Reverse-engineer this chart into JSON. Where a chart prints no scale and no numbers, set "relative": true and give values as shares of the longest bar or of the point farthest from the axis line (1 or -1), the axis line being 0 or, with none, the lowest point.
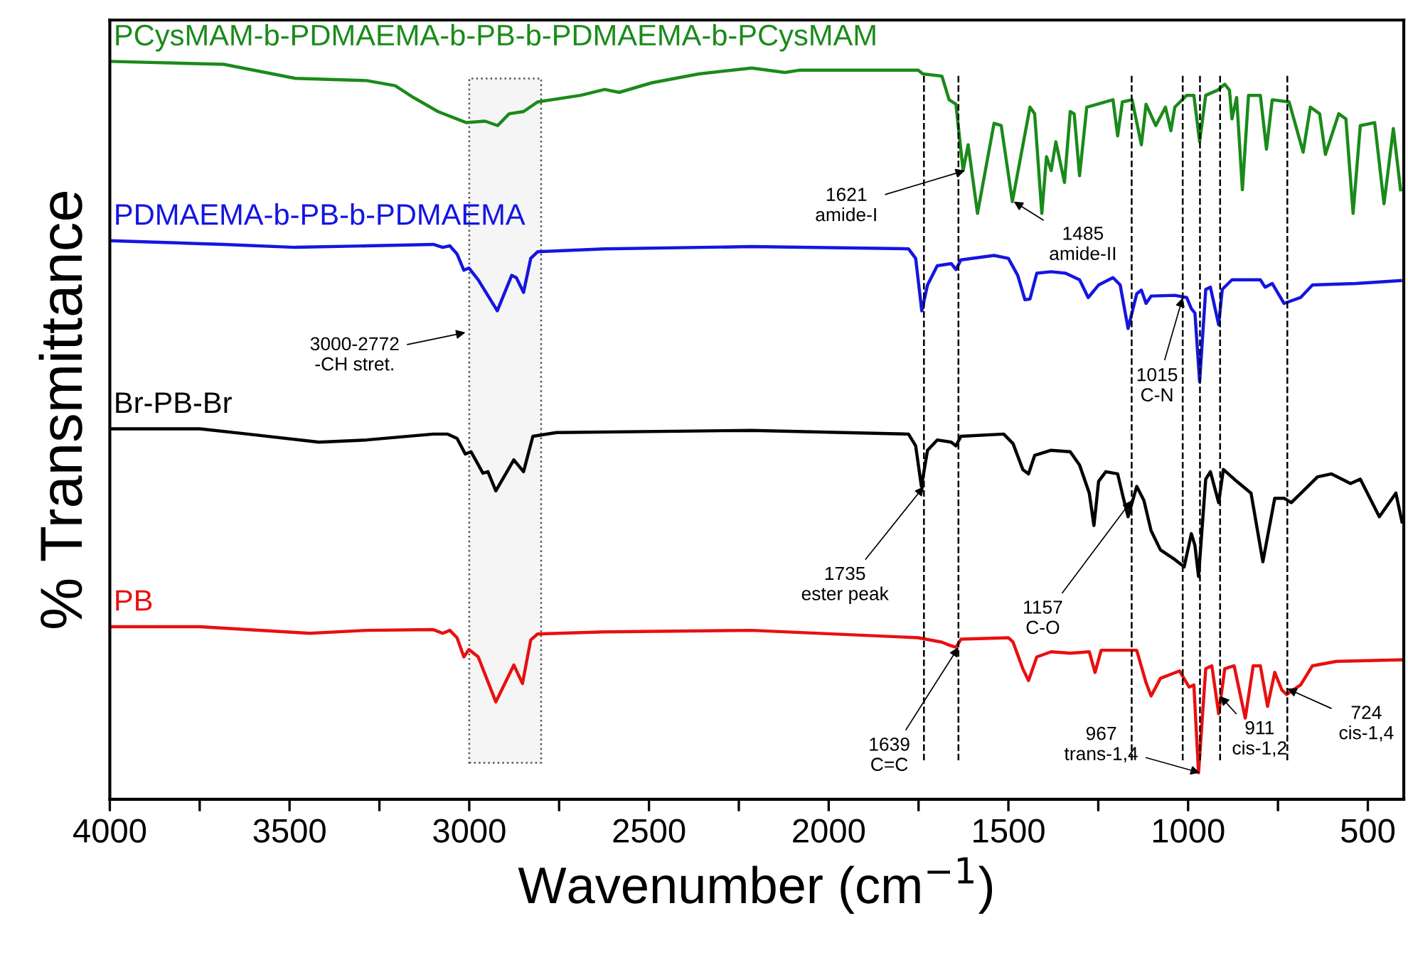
{
  "chart_data": {
    "type": "line",
    "relative": true,
    "xlabel": "Wavenumber (cm$^{−1}$)",
    "ylabel": "% Transmittance",
    "xlim": [
      4000,
      400
    ],
    "xticks": [
      4000,
      {
        "value": 3750,
        "label": null
      },
      3500,
      {
        "value": 3250,
        "label": null
      },
      3000,
      {
        "value": 2750,
        "label": null
      },
      2500,
      {
        "value": 2250,
        "label": null
      },
      2000,
      {
        "value": 1750,
        "label": null
      },
      1500,
      {
        "value": 1250,
        "label": null
      },
      1000,
      {
        "value": 750,
        "label": null
      },
      500
    ],
    "tick_labels": "x",
    "legend": false,
    "grid": false,
    "marker": "none",
    "line_style": "solid",
    "series": [
      {
        "name": "PCysMAM-b-PDMAEMA-b-PB-b-PDMAEMA-b-PCysMAM",
        "color": "#1a8a1a",
        "x": [
          4000,
          3683,
          3484,
          3286,
          3206,
          3155,
          3087,
          3008,
          2956,
          2921,
          2889,
          2849,
          2810,
          2690,
          2623,
          2583,
          2492,
          2361,
          2214,
          2122,
          2082,
          1751,
          1738,
          1685,
          1665,
          1646,
          1626,
          1612,
          1586,
          1540,
          1520,
          1489,
          1440,
          1427,
          1407,
          1394,
          1381,
          1368,
          1344,
          1328,
          1317,
          1302,
          1282,
          1209,
          1196,
          1183,
          1156,
          1130,
          1117,
          1090,
          1063,
          1048,
          1037,
          1004,
          984,
          968,
          951,
          918,
          898,
          885,
          878,
          865,
          849,
          832,
          799,
          782,
          766,
          719,
          680,
          660,
          634,
          618,
          581,
          561,
          541,
          521,
          481,
          455,
          429,
          409
        ],
        "values": [
          1.0,
          0.996,
          0.977,
          0.974,
          0.967,
          0.951,
          0.932,
          0.917,
          0.919,
          0.913,
          0.929,
          0.932,
          0.945,
          0.954,
          0.962,
          0.958,
          0.971,
          0.983,
          0.991,
          0.985,
          0.988,
          0.988,
          0.983,
          0.98,
          0.948,
          0.942,
          0.852,
          0.887,
          0.794,
          0.916,
          0.913,
          0.81,
          0.938,
          0.929,
          0.794,
          0.871,
          0.852,
          0.891,
          0.836,
          0.932,
          0.929,
          0.845,
          0.938,
          0.948,
          0.899,
          0.945,
          0.948,
          0.887,
          0.942,
          0.913,
          0.938,
          0.906,
          0.938,
          0.954,
          0.954,
          0.891,
          0.954,
          0.961,
          0.969,
          0.961,
          0.922,
          0.951,
          0.826,
          0.954,
          0.954,
          0.881,
          0.948,
          0.945,
          0.877,
          0.938,
          0.929,
          0.874,
          0.929,
          0.922,
          0.794,
          0.913,
          0.917,
          0.807,
          0.909,
          0.826
        ]
      },
      {
        "name": "PDMAEMA-b-PB-b-PDMAEMA",
        "color": "#1515e0",
        "x": [
          4000,
          3683,
          3484,
          3286,
          3100,
          3074,
          3054,
          3034,
          3015,
          3001,
          2975,
          2922,
          2882,
          2869,
          2849,
          2829,
          2810,
          2624,
          2214,
          1778,
          1758,
          1741,
          1725,
          1698,
          1659,
          1646,
          1632,
          1540,
          1500,
          1474,
          1454,
          1440,
          1421,
          1381,
          1341,
          1302,
          1278,
          1249,
          1209,
          1189,
          1167,
          1143,
          1130,
          1117,
          1103,
          1037,
          1004,
          991,
          981,
          968,
          951,
          938,
          915,
          905,
          878,
          799,
          786,
          766,
          733,
          687,
          654,
          534,
          409
        ],
        "values": [
          0.757,
          0.752,
          0.748,
          0.75,
          0.752,
          0.748,
          0.75,
          0.739,
          0.717,
          0.72,
          0.704,
          0.662,
          0.71,
          0.707,
          0.687,
          0.733,
          0.742,
          0.746,
          0.749,
          0.746,
          0.733,
          0.662,
          0.697,
          0.723,
          0.726,
          0.718,
          0.731,
          0.737,
          0.733,
          0.71,
          0.677,
          0.678,
          0.713,
          0.715,
          0.713,
          0.704,
          0.68,
          0.697,
          0.707,
          0.697,
          0.638,
          0.685,
          0.69,
          0.672,
          0.682,
          0.683,
          0.68,
          0.665,
          0.659,
          0.566,
          0.691,
          0.694,
          0.643,
          0.691,
          0.704,
          0.704,
          0.694,
          0.699,
          0.672,
          0.68,
          0.697,
          0.699,
          0.703
        ]
      },
      {
        "name": "Br-PB-Br",
        "color": "#000000",
        "x": [
          4000,
          3749,
          3616,
          3418,
          3286,
          3100,
          3061,
          3034,
          3011,
          2995,
          2962,
          2948,
          2926,
          2876,
          2849,
          2823,
          2757,
          2214,
          1778,
          1758,
          1742,
          1725,
          1698,
          1659,
          1646,
          1632,
          1513,
          1487,
          1460,
          1444,
          1427,
          1381,
          1328,
          1302,
          1275,
          1262,
          1249,
          1229,
          1196,
          1180,
          1167,
          1143,
          1123,
          1103,
          1077,
          1037,
          1011,
          991,
          981,
          971,
          951,
          938,
          915,
          902,
          865,
          825,
          792,
          759,
          733,
          713,
          667,
          640,
          601,
          548,
          521,
          468,
          422,
          405
        ],
        "values": [
          0.502,
          0.502,
          0.495,
          0.484,
          0.487,
          0.495,
          0.495,
          0.489,
          0.468,
          0.471,
          0.442,
          0.444,
          0.418,
          0.46,
          0.444,
          0.492,
          0.497,
          0.5,
          0.495,
          0.479,
          0.424,
          0.473,
          0.487,
          0.484,
          0.479,
          0.492,
          0.495,
          0.482,
          0.447,
          0.441,
          0.466,
          0.473,
          0.471,
          0.453,
          0.415,
          0.371,
          0.431,
          0.444,
          0.441,
          0.408,
          0.383,
          0.424,
          0.405,
          0.364,
          0.338,
          0.325,
          0.315,
          0.36,
          0.344,
          0.302,
          0.434,
          0.444,
          0.402,
          0.447,
          0.431,
          0.415,
          0.322,
          0.408,
          0.408,
          0.402,
          0.424,
          0.437,
          0.441,
          0.428,
          0.434,
          0.383,
          0.415,
          0.376
        ]
      },
      {
        "name": "PB",
        "color": "#e81010",
        "x": [
          4000,
          3749,
          3444,
          3286,
          3100,
          3074,
          3054,
          3034,
          3015,
          3001,
          2975,
          2926,
          2876,
          2852,
          2829,
          2810,
          2624,
          2214,
          1751,
          1685,
          1665,
          1646,
          1632,
          1500,
          1487,
          1460,
          1444,
          1421,
          1381,
          1328,
          1275,
          1259,
          1242,
          1143,
          1117,
          1103,
          1077,
          1024,
          997,
          984,
          971,
          951,
          934,
          915,
          898,
          872,
          841,
          819,
          799,
          779,
          759,
          739,
          726,
          687,
          654,
          587,
          405
        ],
        "values": [
          0.234,
          0.234,
          0.225,
          0.229,
          0.23,
          0.225,
          0.229,
          0.219,
          0.193,
          0.203,
          0.193,
          0.132,
          0.182,
          0.157,
          0.216,
          0.224,
          0.227,
          0.229,
          0.219,
          0.213,
          0.209,
          0.206,
          0.217,
          0.219,
          0.213,
          0.177,
          0.161,
          0.193,
          0.2,
          0.198,
          0.2,
          0.172,
          0.202,
          0.202,
          0.158,
          0.14,
          0.164,
          0.174,
          0.152,
          0.155,
          0.036,
          0.177,
          0.181,
          0.116,
          0.177,
          0.181,
          0.11,
          0.181,
          0.181,
          0.126,
          0.172,
          0.148,
          0.142,
          0.155,
          0.181,
          0.187,
          0.189
        ]
      }
    ],
    "ref_lines": [
      {
        "axis": "x",
        "value": 1735,
        "line_style": "dashed",
        "color": "#000000"
      },
      {
        "axis": "x",
        "value": 1639,
        "line_style": "dashed",
        "color": "#000000"
      },
      {
        "axis": "x",
        "value": 1157,
        "line_style": "dashed",
        "color": "#000000"
      },
      {
        "axis": "x",
        "value": 1015,
        "line_style": "dashed",
        "color": "#000000"
      },
      {
        "axis": "x",
        "value": 967,
        "line_style": "dashed",
        "color": "#000000"
      },
      {
        "axis": "x",
        "value": 911,
        "line_style": "dashed",
        "color": "#000000"
      },
      {
        "axis": "x",
        "value": 724,
        "line_style": "dashed",
        "color": "#000000"
      }
    ],
    "bands": [
      {
        "axis": "x",
        "from": 3000,
        "to": 2800,
        "label": "3000-2772\n-CH stret."
      }
    ],
    "annotations": [
      {
        "text": "1621\namide-I",
        "x": 1621,
        "y": 0.852
      },
      {
        "text": "1485\namide-II",
        "x": 1485,
        "y": 0.81
      },
      {
        "text": "1015\nC-N",
        "x": 1015,
        "y": 0.68
      },
      {
        "text": "1735\nester peak",
        "x": 1735,
        "y": 0.424
      },
      {
        "text": "1157\nC-O",
        "x": 1157,
        "y": 0.405
      },
      {
        "text": "1639\nC=C",
        "x": 1639,
        "y": 0.206
      },
      {
        "text": "967\ntrans-1,4",
        "x": 967,
        "y": 0.036
      },
      {
        "text": "911\ncis-1,2",
        "x": 911,
        "y": 0.14
      },
      {
        "text": "724\ncis-1,4",
        "x": 724,
        "y": 0.15
      }
    ]
  }
}
